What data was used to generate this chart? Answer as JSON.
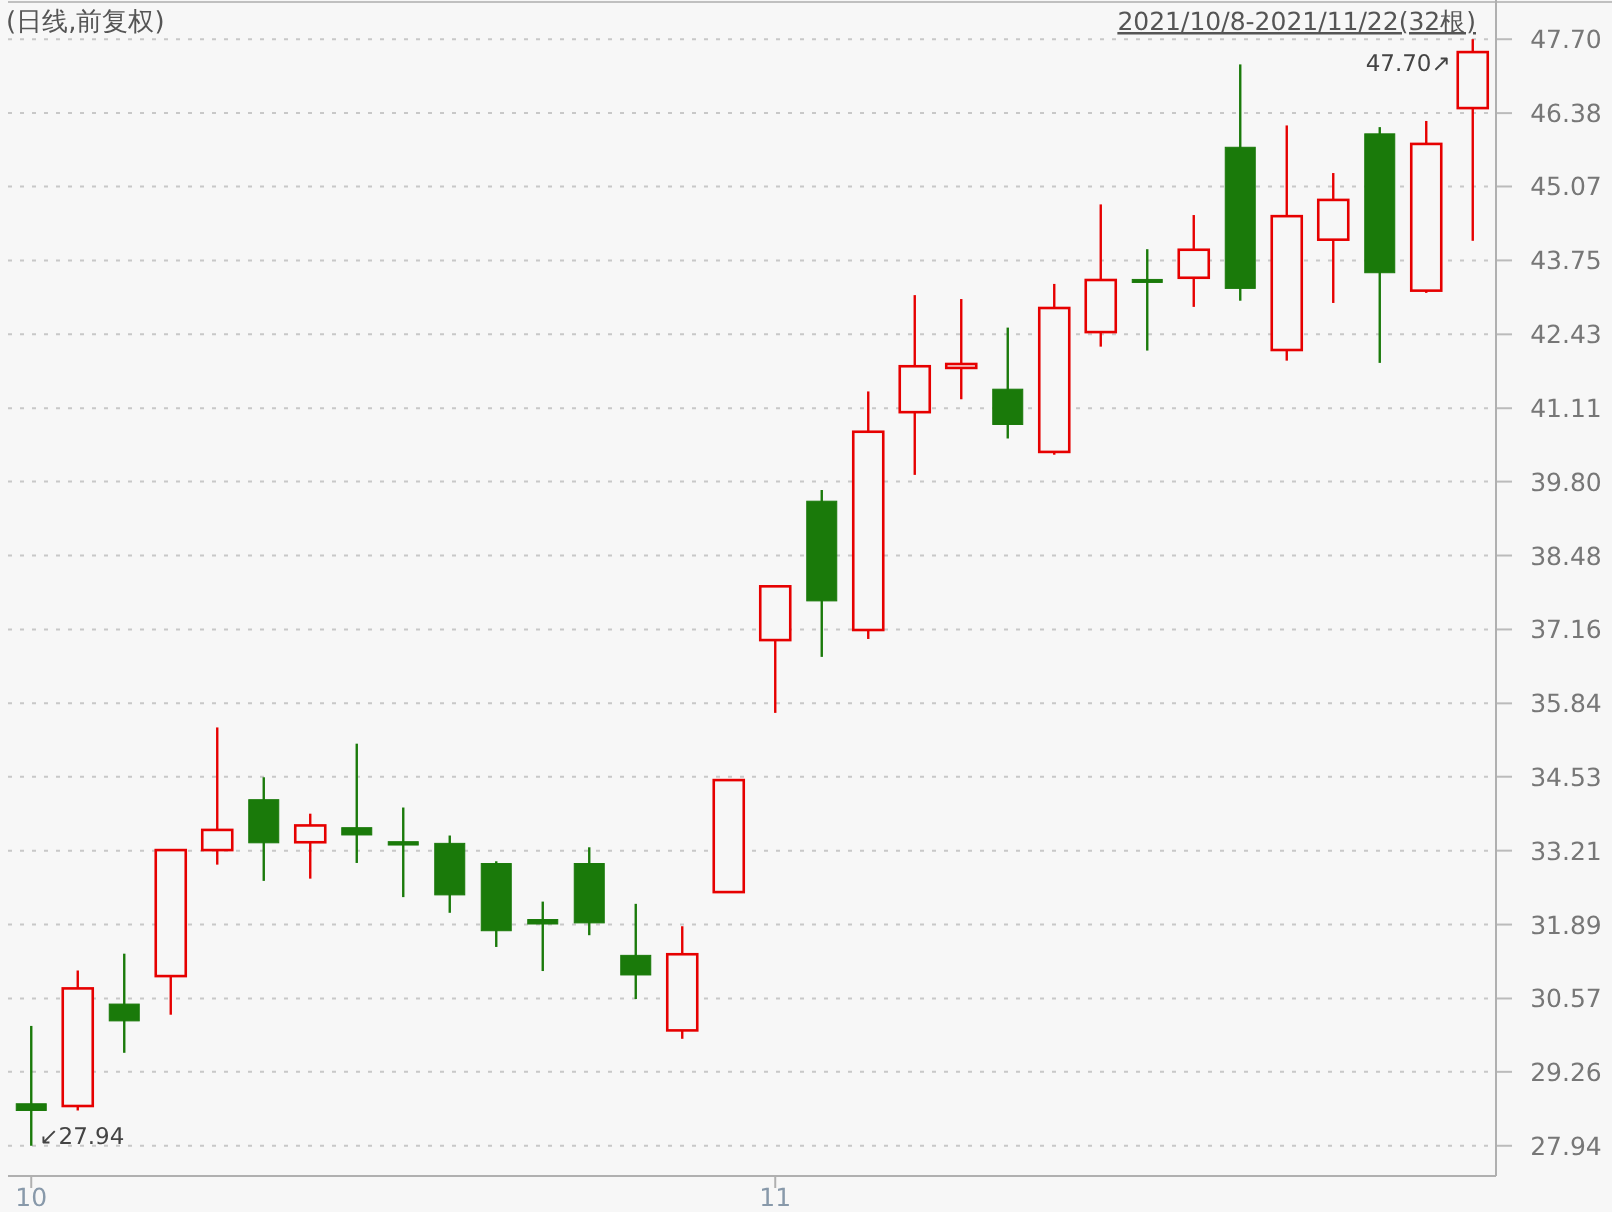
{
  "chart_data": {
    "type": "candlestick",
    "title": "(日线,前复权)",
    "subtitle": "2021/10/8-2021/11/22(32根)",
    "categories": [
      "10",
      null,
      null,
      null,
      null,
      null,
      null,
      null,
      null,
      null,
      null,
      null,
      null,
      null,
      null,
      null,
      "11",
      null,
      null,
      null,
      null,
      null,
      null,
      null,
      null,
      null,
      null,
      null,
      null,
      null,
      null,
      null
    ],
    "ohlc": [
      [
        28.69,
        30.08,
        27.94,
        28.57
      ],
      [
        28.65,
        31.07,
        28.57,
        30.75
      ],
      [
        30.47,
        31.37,
        29.6,
        30.17
      ],
      [
        30.97,
        33.22,
        30.28,
        33.22
      ],
      [
        33.22,
        35.41,
        32.96,
        33.58
      ],
      [
        34.12,
        34.52,
        32.67,
        33.35
      ],
      [
        33.36,
        33.87,
        32.71,
        33.66
      ],
      [
        33.62,
        35.12,
        32.99,
        33.49
      ],
      [
        33.37,
        33.98,
        32.38,
        33.31
      ],
      [
        33.34,
        33.48,
        32.1,
        32.42
      ],
      [
        32.98,
        33.02,
        31.49,
        31.78
      ],
      [
        31.98,
        32.3,
        31.06,
        31.9
      ],
      [
        32.98,
        33.27,
        31.7,
        31.92
      ],
      [
        31.34,
        32.26,
        30.56,
        30.99
      ],
      [
        30.0,
        31.86,
        29.85,
        31.36
      ],
      [
        32.47,
        34.47,
        32.47,
        34.47
      ],
      [
        36.97,
        37.93,
        35.67,
        37.93
      ],
      [
        39.45,
        39.65,
        36.67,
        37.67
      ],
      [
        37.15,
        41.41,
        36.99,
        40.69
      ],
      [
        41.04,
        43.13,
        39.92,
        41.86
      ],
      [
        41.83,
        43.06,
        41.27,
        41.9
      ],
      [
        41.45,
        42.55,
        40.57,
        40.82
      ],
      [
        40.33,
        43.33,
        40.28,
        42.9
      ],
      [
        42.47,
        44.75,
        42.21,
        43.4
      ],
      [
        43.41,
        43.95,
        42.14,
        43.37
      ],
      [
        43.44,
        44.56,
        42.92,
        43.94
      ],
      [
        45.77,
        47.25,
        43.03,
        43.25
      ],
      [
        42.15,
        46.16,
        41.96,
        44.54
      ],
      [
        44.12,
        45.31,
        42.99,
        44.83
      ],
      [
        46.01,
        46.13,
        41.92,
        43.53
      ],
      [
        43.21,
        46.24,
        43.17,
        45.83
      ],
      [
        46.47,
        47.7,
        44.1,
        47.47
      ]
    ],
    "colors": [
      "#1a7a0a",
      "#e60000",
      "#1a7a0a",
      "#e60000",
      "#e60000",
      "#1a7a0a",
      "#e60000",
      "#1a7a0a",
      "#1a7a0a",
      "#1a7a0a",
      "#1a7a0a",
      "#1a7a0a",
      "#1a7a0a",
      "#1a7a0a",
      "#e60000",
      "#e60000",
      "#e60000",
      "#1a7a0a",
      "#e60000",
      "#e60000",
      "#e60000",
      "#1a7a0a",
      "#e60000",
      "#e60000",
      "#1a7a0a",
      "#e60000",
      "#1a7a0a",
      "#e60000",
      "#e60000",
      "#1a7a0a",
      "#e60000",
      "#e60000"
    ],
    "ylim": [
      27.4,
      48.4
    ],
    "yticks": [
      27.94,
      29.26,
      30.57,
      31.89,
      33.21,
      34.53,
      35.84,
      37.16,
      38.48,
      {
        "value": 39.8,
        "label": "39.80"
      },
      41.11,
      42.43,
      43.75,
      45.07,
      46.38,
      {
        "value": 47.7,
        "label": "47.70"
      }
    ],
    "grid": "y",
    "annotations": [
      "↙27.94",
      "47.70↗"
    ]
  }
}
